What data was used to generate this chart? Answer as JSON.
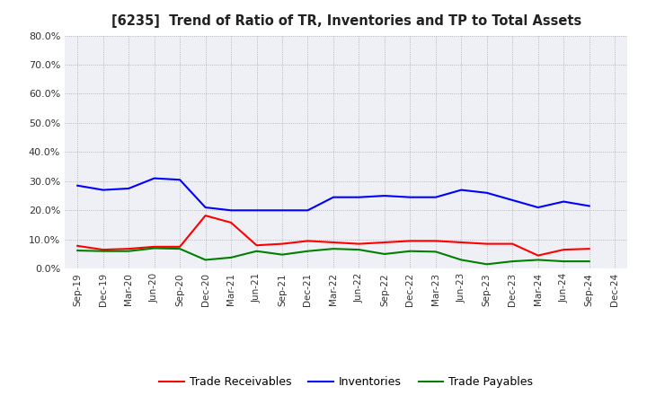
{
  "title": "[6235]  Trend of Ratio of TR, Inventories and TP to Total Assets",
  "x_labels": [
    "Sep-19",
    "Dec-19",
    "Mar-20",
    "Jun-20",
    "Sep-20",
    "Dec-20",
    "Mar-21",
    "Jun-21",
    "Sep-21",
    "Dec-21",
    "Mar-22",
    "Jun-22",
    "Sep-22",
    "Dec-22",
    "Mar-23",
    "Jun-23",
    "Sep-23",
    "Dec-23",
    "Mar-24",
    "Jun-24",
    "Sep-24",
    "Dec-24"
  ],
  "trade_receivables": [
    0.078,
    0.065,
    0.068,
    0.075,
    0.075,
    0.182,
    0.158,
    0.08,
    0.085,
    0.095,
    0.09,
    0.085,
    0.09,
    0.095,
    0.095,
    0.09,
    0.085,
    0.085,
    0.045,
    0.065,
    0.068,
    null
  ],
  "inventories": [
    0.285,
    0.27,
    0.275,
    0.31,
    0.305,
    0.21,
    0.2,
    0.2,
    0.2,
    0.2,
    0.245,
    0.245,
    0.25,
    0.245,
    0.245,
    0.27,
    0.26,
    0.235,
    0.21,
    0.23,
    0.215,
    null
  ],
  "trade_payables": [
    0.062,
    0.06,
    0.06,
    0.07,
    0.068,
    0.03,
    0.038,
    0.06,
    0.048,
    0.06,
    0.068,
    0.065,
    0.05,
    0.06,
    0.058,
    0.03,
    0.015,
    0.025,
    0.03,
    0.025,
    0.025,
    null
  ],
  "tr_color": "#ff0000",
  "inv_color": "#0000ff",
  "tp_color": "#008000",
  "ylim": [
    0.0,
    0.8
  ],
  "yticks": [
    0.0,
    0.1,
    0.2,
    0.3,
    0.4,
    0.5,
    0.6,
    0.7,
    0.8
  ],
  "fig_bg_color": "#ffffff",
  "plot_bg_color": "#eef0f5",
  "grid_color": "#888888",
  "legend_tr": "Trade Receivables",
  "legend_inv": "Inventories",
  "legend_tp": "Trade Payables"
}
